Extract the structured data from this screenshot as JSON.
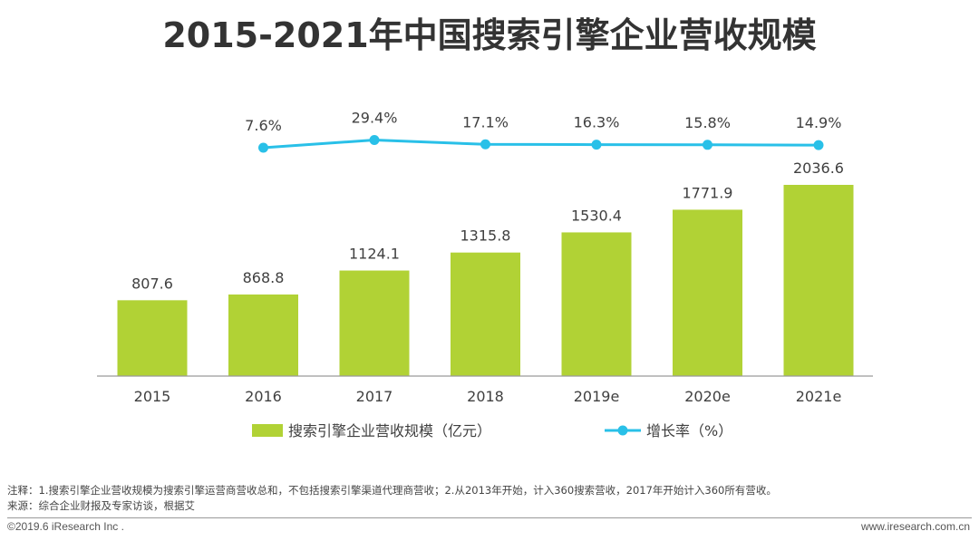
{
  "title": "2015-2021年中国搜索引擎企业营收规模",
  "chart_data": {
    "type": "bar",
    "categories": [
      "2015",
      "2016",
      "2017",
      "2018",
      "2019e",
      "2020e",
      "2021e"
    ],
    "series": [
      {
        "name": "搜索引擎企业营收规模（亿元）",
        "type": "bar",
        "color": "#b1d235",
        "values": [
          807.6,
          868.8,
          1124.1,
          1315.8,
          1530.4,
          1771.9,
          2036.6
        ],
        "labels": [
          "807.6",
          "868.8",
          "1124.1",
          "1315.8",
          "1530.4",
          "1771.9",
          "2036.6"
        ]
      },
      {
        "name": "增长率（%）",
        "type": "line",
        "color": "#29c0e8",
        "values": [
          null,
          7.6,
          29.4,
          17.1,
          16.3,
          15.8,
          14.9
        ],
        "labels": [
          null,
          "7.6%",
          "29.4%",
          "17.1%",
          "16.3%",
          "15.8%",
          "14.9%"
        ]
      }
    ],
    "legend": "bottom-center",
    "grid": false
  },
  "notes": {
    "note1": "注释：1.搜索引擎企业营收规模为搜索引擎运营商营收总和，不包括搜索引擎渠道代理商营收；2.从2013年开始，计入360搜索营收，2017年开始计入360所有营收。",
    "note2": "来源：综合企业财报及专家访谈，根据艾"
  },
  "footer": {
    "copyright": "©2019.6 iResearch Inc .",
    "website": "www.iresearch.com.cn"
  }
}
